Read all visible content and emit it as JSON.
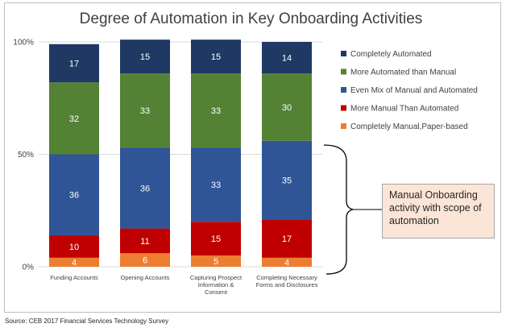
{
  "chart_data": {
    "type": "bar",
    "stacked": true,
    "title": "Degree of Automation in Key Onboarding Activities",
    "categories": [
      "Funding Accounts",
      "Opening Accounts",
      "Capturing Prospect Information & Consent",
      "Completing Necessary Forms and Disclosures"
    ],
    "category_lines": [
      [
        "Funding Accounts"
      ],
      [
        "Opening Accounts"
      ],
      [
        "Capturing Prospect",
        "Information &",
        "Consent"
      ],
      [
        "Completing Necessary",
        "Forms and Disclosures"
      ]
    ],
    "series": [
      {
        "name": "Completely Manual,Paper-based",
        "color": "#ed7d31",
        "values": [
          4,
          6,
          5,
          4
        ]
      },
      {
        "name": "More Manual Than Automated",
        "color": "#c00000",
        "values": [
          10,
          11,
          15,
          17
        ]
      },
      {
        "name": "Even Mix of Manual and Automated",
        "color": "#2f5597",
        "values": [
          36,
          36,
          33,
          35
        ]
      },
      {
        "name": "More Automated than Manual",
        "color": "#548235",
        "values": [
          32,
          33,
          33,
          30
        ]
      },
      {
        "name": "Completely Automated",
        "color": "#203864",
        "values": [
          17,
          15,
          15,
          14
        ]
      }
    ],
    "legend_order": [
      4,
      3,
      2,
      1,
      0
    ],
    "ytick_labels": [
      "0%",
      "50%",
      "100%"
    ],
    "ylim": [
      0,
      100
    ],
    "xlabel": "",
    "ylabel": "",
    "grid": "horizontal",
    "legend_position": "right"
  },
  "callout": {
    "text": "Manual Onboarding activity with scope of automation"
  },
  "source": "Source: CEB 2017 Financial Services Technology Survey"
}
